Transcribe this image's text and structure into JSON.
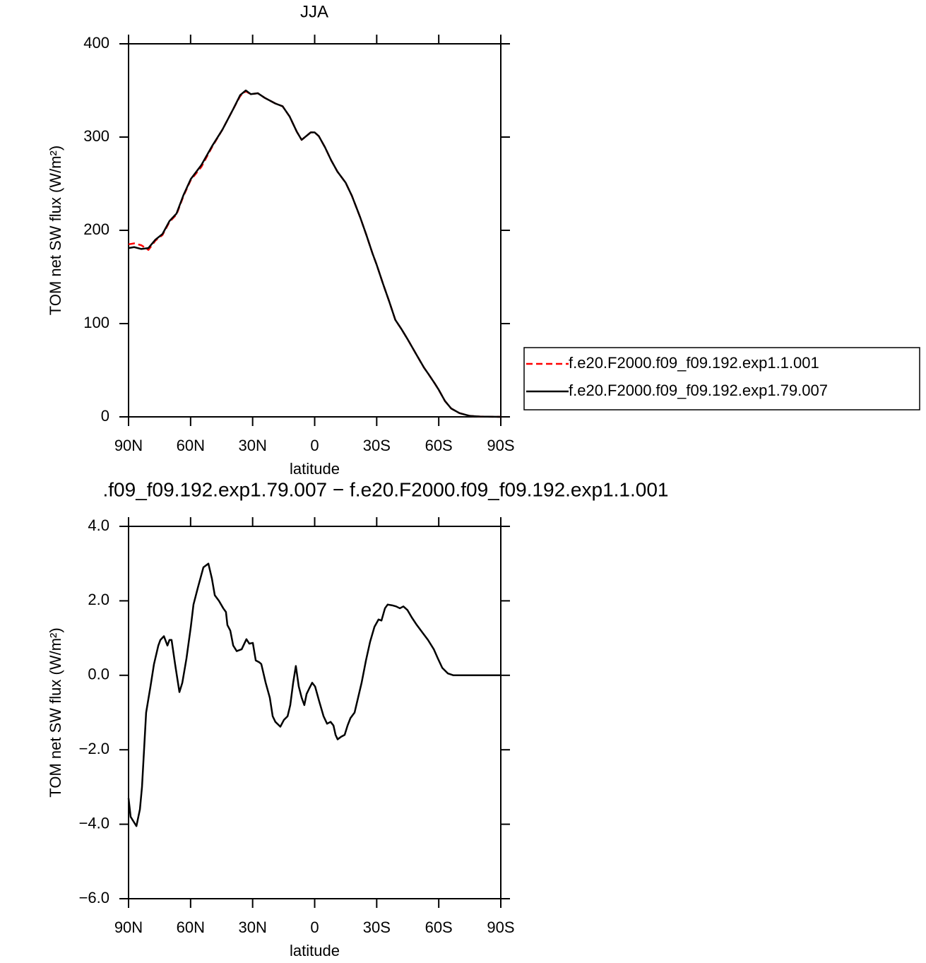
{
  "chart_data": [
    {
      "type": "line",
      "title": "JJA",
      "x_label": "latitude",
      "y_label": "TOM net SW flux (W/m²)",
      "legend": "right",
      "x": [
        90,
        87.3,
        83.8,
        80.4,
        77,
        73.6,
        70.2,
        66.8,
        63.4,
        59.9,
        54.8,
        49.7,
        44.6,
        39.4,
        36,
        33.3,
        30.9,
        27.5,
        24.1,
        19,
        15.5,
        12.1,
        8.7,
        6.3,
        1.9,
        0,
        -2,
        -5,
        -8,
        -11,
        -15,
        -18,
        -22,
        -25,
        -28,
        -30,
        -33,
        -36,
        -39,
        -42,
        -45,
        -49.4,
        -52.8,
        -55,
        -58,
        -60,
        -63,
        -66,
        -70,
        -75,
        -80,
        -90
      ],
      "series": [
        {
          "name": "f.e20.F2000.f09_f09.192.exp1.1.001",
          "color": "#ff0000",
          "dashed": true,
          "values": [
            185,
            186,
            184,
            179,
            189,
            195,
            209,
            217,
            237,
            254,
            268,
            289,
            308,
            330,
            344,
            349,
            346,
            347,
            342,
            336,
            333,
            322,
            306,
            297,
            305,
            305,
            301,
            289,
            275,
            263,
            251,
            237,
            214,
            195,
            175,
            163,
            143,
            124,
            104,
            94,
            83,
            66,
            53,
            46,
            36,
            29,
            17,
            9,
            4,
            1,
            0.3,
            0
          ]
        },
        {
          "name": "f.e20.F2000.f09_f09.192.exp1.79.007",
          "color": "#000000",
          "dashed": false,
          "values": [
            181,
            182,
            180,
            181,
            190,
            196,
            210,
            218,
            238,
            255,
            270,
            290,
            308,
            330,
            345,
            350,
            346,
            347,
            342,
            336,
            333,
            322,
            306,
            297,
            305,
            305,
            301,
            289,
            275,
            263,
            251,
            237,
            214,
            195,
            175,
            163,
            143,
            124,
            104,
            94,
            83,
            66,
            53,
            46,
            36,
            29,
            17,
            9,
            4,
            1,
            0.3,
            0
          ]
        }
      ],
      "xlim": [
        90,
        -90
      ],
      "xticks": [
        {
          "value": 90,
          "label": "90N"
        },
        {
          "value": 60,
          "label": "60N"
        },
        {
          "value": 30,
          "label": "30N"
        },
        0,
        {
          "value": -30,
          "label": "30S"
        },
        {
          "value": -60,
          "label": "60S"
        },
        {
          "value": -90,
          "label": "90S"
        }
      ],
      "ylim": [
        0,
        400
      ],
      "yticks": [
        0,
        100,
        200,
        300,
        400
      ]
    },
    {
      "type": "line",
      "title": ".f09_f09.192.exp1.79.007 − f.e20.F2000.f09_f09.192.exp1.1.001",
      "x_label": "latitude",
      "y_label": "TOM net SW flux (W/m²)",
      "x": [
        90,
        89,
        86.2,
        84.5,
        83.5,
        81.5,
        79.4,
        77.7,
        75.6,
        74.6,
        72.9,
        71.2,
        70.2,
        69.2,
        67.5,
        65.4,
        64,
        62,
        59.9,
        58.6,
        56.5,
        53.8,
        51.4,
        49.7,
        48.3,
        46.3,
        44.2,
        42.9,
        42.2,
        40.8,
        39.4,
        37.7,
        35.3,
        33,
        31.6,
        29.9,
        28.5,
        26.8,
        25.8,
        23.7,
        21.7,
        20.3,
        19,
        16.6,
        14.9,
        13.1,
        11.8,
        10.4,
        9.1,
        7.7,
        6.3,
        5,
        3.9,
        2.6,
        1.2,
        -0.2,
        -2.2,
        -4.3,
        -6,
        -7.7,
        -9.1,
        -10.1,
        -11.1,
        -12.8,
        -14.5,
        -15.9,
        -17.3,
        -19.3,
        -21,
        -22.7,
        -24.8,
        -26.8,
        -28.9,
        -30.9,
        -32.3,
        -34,
        -35.3,
        -37.4,
        -39.4,
        -41.2,
        -42.9,
        -44.9,
        -47,
        -49.4,
        -52.1,
        -54.8,
        -57.6,
        -59.6,
        -61.7,
        -64.4,
        -67.1,
        -90
      ],
      "series": [
        {
          "color": "#000000",
          "dashed": false,
          "values": [
            -3.3,
            -3.8,
            -4.05,
            -3.6,
            -3.0,
            -1.0,
            -0.3,
            0.3,
            0.8,
            0.95,
            1.05,
            0.8,
            0.95,
            0.95,
            0.3,
            -0.45,
            -0.2,
            0.45,
            1.3,
            1.9,
            2.35,
            2.9,
            3.0,
            2.6,
            2.15,
            2.0,
            1.8,
            1.7,
            1.35,
            1.2,
            0.8,
            0.65,
            0.7,
            0.97,
            0.85,
            0.87,
            0.4,
            0.35,
            0.3,
            -0.2,
            -0.6,
            -1.1,
            -1.25,
            -1.38,
            -1.2,
            -1.1,
            -0.8,
            -0.2,
            0.25,
            -0.3,
            -0.6,
            -0.8,
            -0.5,
            -0.35,
            -0.2,
            -0.3,
            -0.7,
            -1.1,
            -1.3,
            -1.25,
            -1.35,
            -1.6,
            -1.72,
            -1.65,
            -1.6,
            -1.35,
            -1.15,
            -1.0,
            -0.6,
            -0.2,
            0.4,
            0.9,
            1.3,
            1.5,
            1.47,
            1.8,
            1.9,
            1.88,
            1.85,
            1.8,
            1.85,
            1.75,
            1.55,
            1.35,
            1.15,
            0.95,
            0.7,
            0.45,
            0.2,
            0.05,
            0,
            0
          ]
        }
      ],
      "xlim": [
        90,
        -90
      ],
      "xticks": [
        {
          "value": 90,
          "label": "90N"
        },
        {
          "value": 60,
          "label": "60N"
        },
        {
          "value": 30,
          "label": "30N"
        },
        0,
        {
          "value": -30,
          "label": "30S"
        },
        {
          "value": -60,
          "label": "60S"
        },
        {
          "value": -90,
          "label": "90S"
        }
      ],
      "ylim": [
        -6,
        4
      ],
      "yticks": [
        {
          "value": -6,
          "label": "−6.0"
        },
        {
          "value": -4,
          "label": "−4.0"
        },
        {
          "value": -2,
          "label": "−2.0"
        },
        {
          "value": 0,
          "label": "0.0"
        },
        {
          "value": 2,
          "label": "2.0"
        },
        {
          "value": 4,
          "label": "4.0"
        }
      ]
    }
  ]
}
